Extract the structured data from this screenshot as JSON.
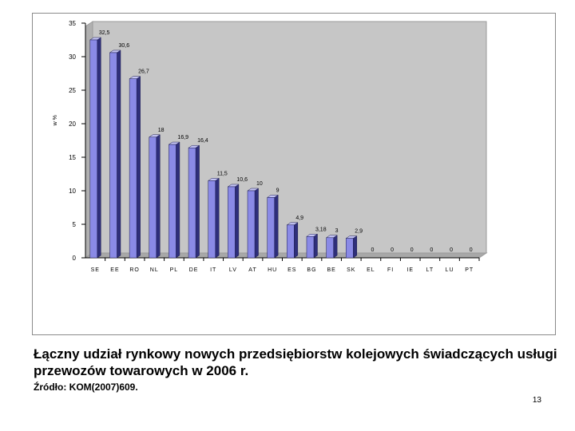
{
  "chart_data": {
    "type": "bar",
    "ylabel": "w %",
    "xlabel": "",
    "ylim": [
      0,
      35
    ],
    "yticks": [
      0,
      5,
      10,
      15,
      20,
      25,
      30,
      35
    ],
    "categories": [
      "SE",
      "EE",
      "RO",
      "NL",
      "PL",
      "DE",
      "IT",
      "LV",
      "AT",
      "HU",
      "ES",
      "BG",
      "BE",
      "SK",
      "EL",
      "FI",
      "IE",
      "LT",
      "LU",
      "PT"
    ],
    "values": [
      32.5,
      30.6,
      26.7,
      18,
      16.9,
      16.4,
      11.5,
      10.6,
      10,
      9,
      4.9,
      3.18,
      3,
      2.9,
      0,
      0,
      0,
      0,
      0,
      0
    ],
    "data_labels": [
      "32,5",
      "30,6",
      "26,7",
      "18",
      "16,9",
      "16,4",
      "11,5",
      "10,6",
      "10",
      "9",
      "4,9",
      "3,18",
      "3",
      "2,9",
      "0",
      "0",
      "0",
      "0",
      "0",
      "0"
    ],
    "grid": false,
    "legend": "none",
    "colors": {
      "bar_front": "#8a8ae6",
      "bar_top": "#c4c4f4",
      "bar_side": "#2e2e7a",
      "plot_bg": "#c6c6c6",
      "plot_wall": "#b0b0b0"
    }
  },
  "caption": "Łączny udział rynkowy nowych przedsiębiorstw kolejowych świadczących usługi przewozów towarowych w 2006 r.",
  "source": "Źródło: KOM(2007)609.",
  "page_number": "13"
}
